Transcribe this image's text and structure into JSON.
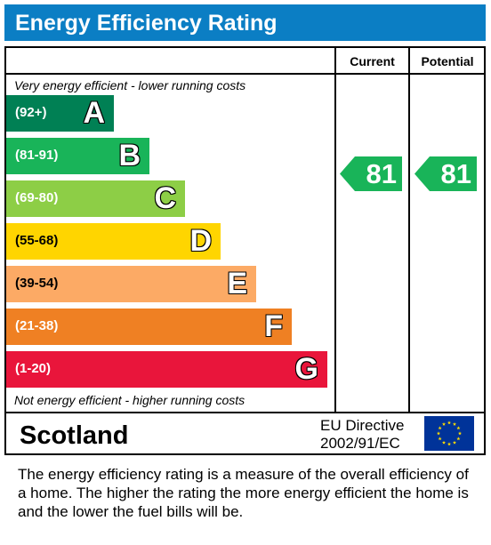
{
  "title": "Energy Efficiency Rating",
  "columns": {
    "current": "Current",
    "potential": "Potential"
  },
  "top_note": "Very energy efficient - lower running costs",
  "bottom_note": "Not energy efficient - higher running costs",
  "colors": {
    "title_bar": "#0b7ec4",
    "A": "#008054",
    "B": "#19b459",
    "C": "#8dce46",
    "D": "#ffd500",
    "E": "#fcaa65",
    "F": "#ef8023",
    "G": "#e9153b",
    "rating_arrow": "#19b459",
    "eu_flag": "#003399",
    "eu_stars": "#ffdd00"
  },
  "chart_data": {
    "type": "bar",
    "categories": [
      "A",
      "B",
      "C",
      "D",
      "E",
      "F",
      "G"
    ],
    "bands": [
      {
        "letter": "A",
        "range": "(92+)"
      },
      {
        "letter": "B",
        "range": "(81-91)"
      },
      {
        "letter": "C",
        "range": "(69-80)"
      },
      {
        "letter": "D",
        "range": "(55-68)"
      },
      {
        "letter": "E",
        "range": "(39-54)"
      },
      {
        "letter": "F",
        "range": "(21-38)"
      },
      {
        "letter": "G",
        "range": "(1-20)"
      }
    ],
    "current": {
      "value": 81,
      "band": "B"
    },
    "potential": {
      "value": 81,
      "band": "B"
    }
  },
  "region": "Scotland",
  "directive": {
    "line1": "EU Directive",
    "line2": "2002/91/EC"
  },
  "footer_text": "The energy efficiency rating is a measure of the overall efficiency of a home.  The higher the rating the more energy efficient the home is and the lower the fuel bills will be."
}
